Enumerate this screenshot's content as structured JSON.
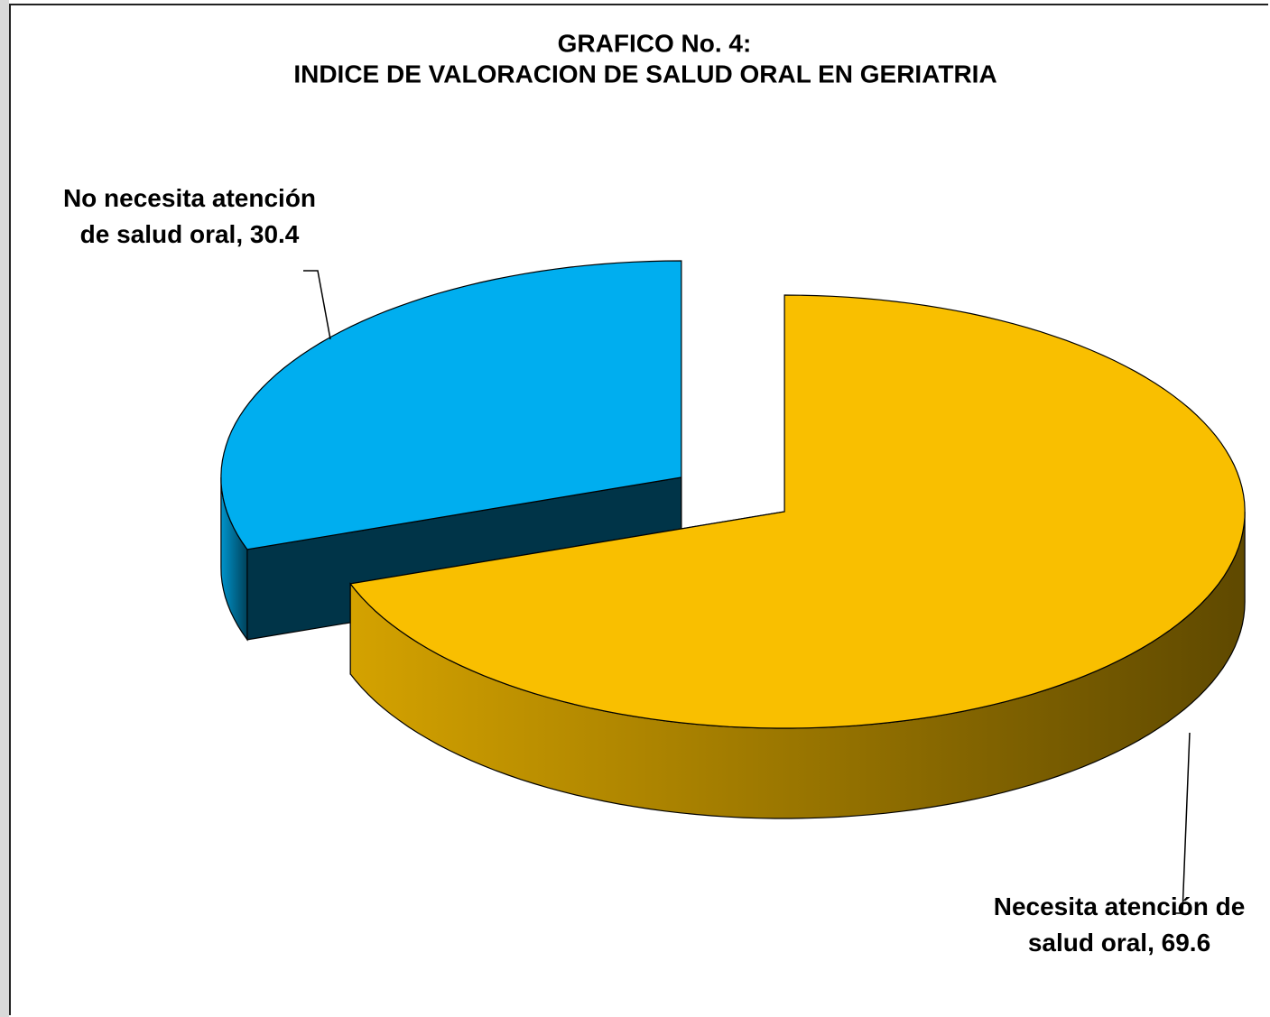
{
  "chart_data": {
    "type": "pie",
    "title": "GRAFICO No. 4:",
    "subtitle": "INDICE DE VALORACION DE SALUD ORAL EN GERIATRIA",
    "values": [
      69.6,
      30.4
    ],
    "value_labels": [
      "Necesita atención de salud oral, 69.6",
      "No necesita atención de salud oral, 30.4"
    ],
    "colors": [
      "#f9bf00",
      "#00aeef"
    ]
  }
}
